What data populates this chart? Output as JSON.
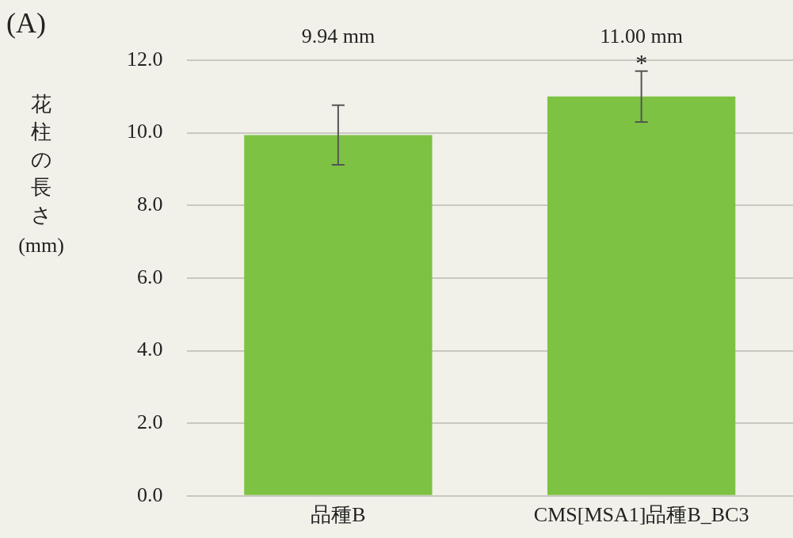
{
  "chart_data": {
    "type": "bar",
    "title": "(A)",
    "ylabel": "花柱の長さ (mm)",
    "categories": [
      "品種B",
      "CMS[MSA1]品種B_BC3"
    ],
    "values": [
      9.94,
      11.0
    ],
    "errors": [
      0.82,
      0.7
    ],
    "color": "#7dc242",
    "ylim": [
      0,
      12
    ],
    "yticks": [
      {
        "value": 0,
        "label": "0.0"
      },
      {
        "value": 2,
        "label": "2.0"
      },
      {
        "value": 4,
        "label": "4.0"
      },
      {
        "value": 6,
        "label": "6.0"
      },
      {
        "value": 8,
        "label": "8.0"
      },
      {
        "value": 10,
        "label": "10.0"
      },
      {
        "value": 12,
        "label": "12.0"
      }
    ],
    "grid": "y",
    "legend": false,
    "annotations": [
      "9.94 mm",
      "11.00 mm",
      {
        "text": "*",
        "x": "CMS[MSA1]品種B_BC3",
        "y": 11.7
      }
    ]
  }
}
